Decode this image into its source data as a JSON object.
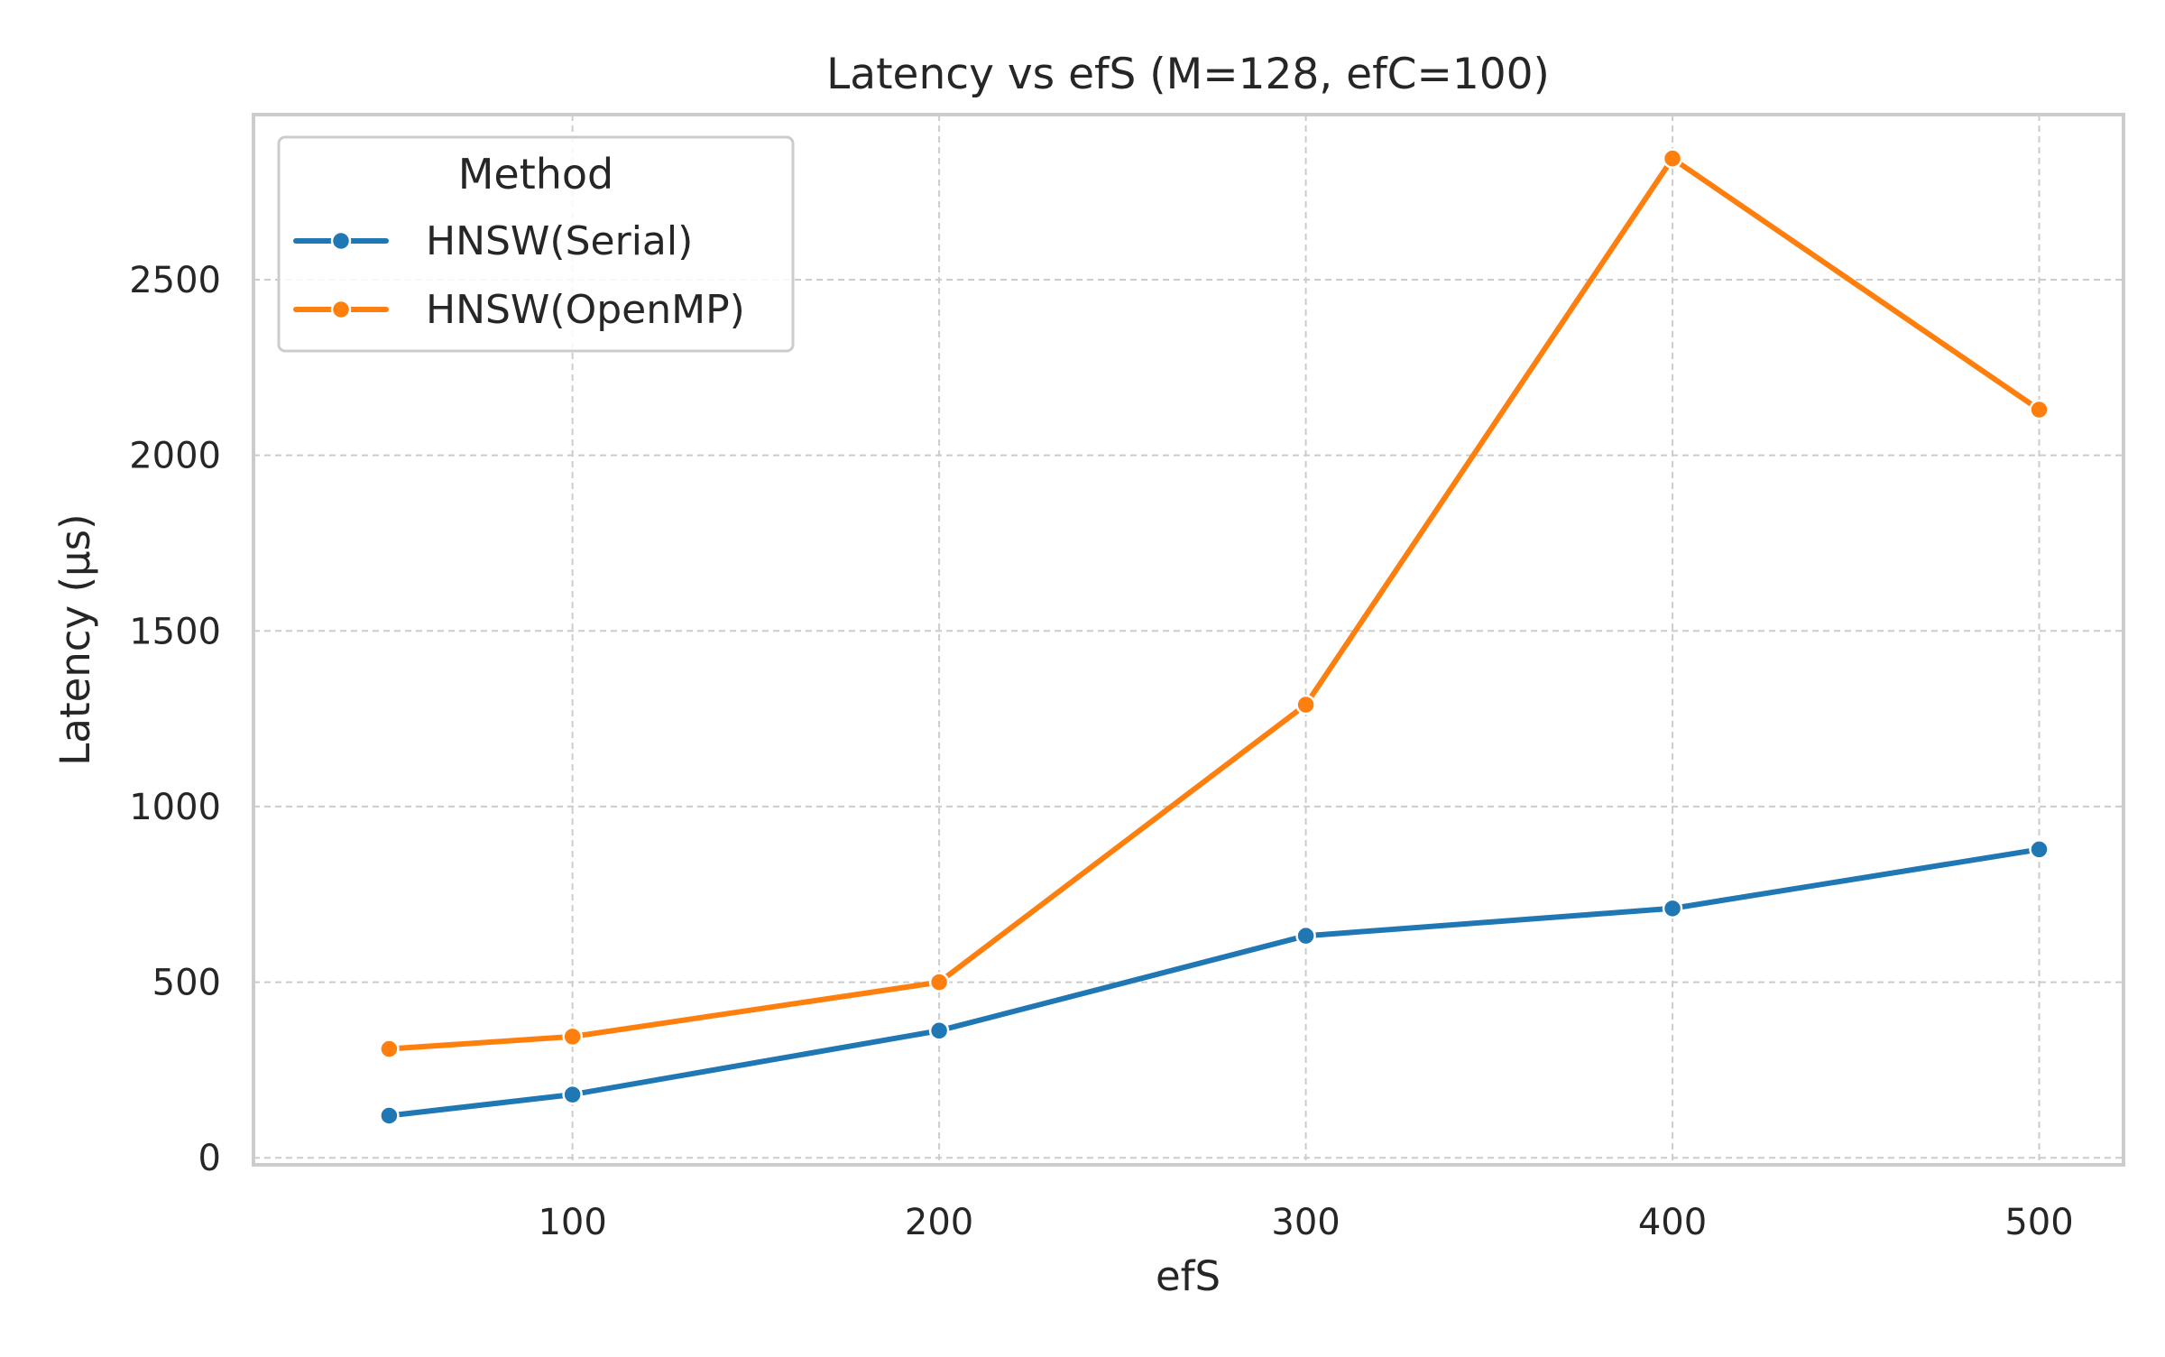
{
  "chart_data": {
    "type": "line",
    "title": "Latency vs efS (M=128, efC=100)",
    "xlabel": "efS",
    "ylabel": "Latency (µs)",
    "xlim": [
      13,
      523
    ],
    "ylim": [
      -20,
      2970
    ],
    "x_ticks": [
      100,
      200,
      300,
      400,
      500
    ],
    "y_ticks": [
      0,
      500,
      1000,
      1500,
      2000,
      2500
    ],
    "grid": true,
    "legend": {
      "title": "Method",
      "placement": "top-left"
    },
    "x": [
      50,
      100,
      200,
      300,
      400,
      500
    ],
    "series": [
      {
        "name": "HNSW(Serial)",
        "color": "#1f77b4",
        "values": [
          120,
          180,
          362,
          632,
          710,
          878
        ]
      },
      {
        "name": "HNSW(OpenMP)",
        "color": "#ff7f0e",
        "values": [
          310,
          345,
          500,
          1290,
          2845,
          2130
        ]
      }
    ]
  }
}
